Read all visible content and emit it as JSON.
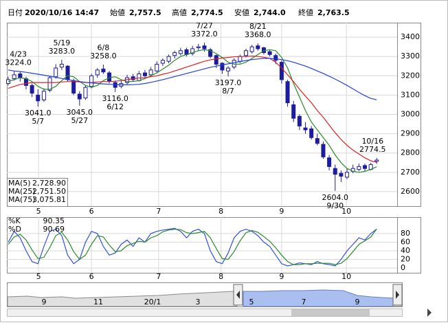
{
  "header": {
    "fields": [
      {
        "label": "日付",
        "value": "2020/10/16 14:47",
        "color": "#000000"
      },
      {
        "label": "始値",
        "value": "2,757.5",
        "color": "#000000"
      },
      {
        "label": "高値",
        "value": "2,774.5",
        "color": "#e00000"
      },
      {
        "label": "安値",
        "value": "2,744.0",
        "color": "#008000"
      },
      {
        "label": "終値",
        "value": "2,763.5",
        "color": "#000000"
      }
    ]
  },
  "chart_data": {
    "type": "candlestick",
    "ylim": [
      2525,
      3475
    ],
    "yticks": [
      2600,
      2700,
      2800,
      2900,
      3000,
      3100,
      3200,
      3300,
      3400
    ],
    "grid": true,
    "xticks": [
      {
        "value": 5.1,
        "label": "5"
      },
      {
        "value": 14,
        "label": "6"
      },
      {
        "value": 25.3,
        "label": "7"
      },
      {
        "value": 35.8,
        "label": "8"
      },
      {
        "value": 46,
        "label": "9"
      },
      {
        "value": 56.9,
        "label": "10"
      }
    ],
    "up_color": "#ffffff",
    "down_color": "#1c1c9c",
    "edge_color": "#1c1c9c",
    "open": [
      3160,
      3185,
      3210,
      3185,
      3150,
      3100,
      3075,
      3125,
      3195,
      3245,
      3250,
      3175,
      3105,
      3085,
      3145,
      3205,
      3235,
      3215,
      3165,
      3145,
      3165,
      3195,
      3175,
      3215,
      3205,
      3225,
      3265,
      3275,
      3305,
      3315,
      3335,
      3315,
      3345,
      3355,
      3335,
      3305,
      3265,
      3225,
      3245,
      3275,
      3305,
      3325,
      3355,
      3345,
      3325,
      3305,
      3270,
      3170,
      3050,
      2990,
      2930,
      2925,
      2875,
      2845,
      2775,
      2720,
      2695,
      2675,
      2705,
      2715,
      2735,
      2715,
      2757.5
    ],
    "high": [
      3195,
      3224,
      3220,
      3195,
      3160,
      3130,
      3135,
      3200,
      3260,
      3283,
      3255,
      3185,
      3120,
      3150,
      3210,
      3240,
      3258,
      3225,
      3175,
      3175,
      3205,
      3210,
      3225,
      3230,
      3245,
      3275,
      3290,
      3310,
      3330,
      3345,
      3345,
      3355,
      3365,
      3372,
      3345,
      3310,
      3270,
      3250,
      3290,
      3310,
      3340,
      3360,
      3368,
      3350,
      3335,
      3315,
      3280,
      3180,
      3070,
      3000,
      2960,
      2940,
      2900,
      2860,
      2790,
      2740,
      2710,
      2720,
      2740,
      2745,
      2745,
      2750,
      2774.5
    ],
    "low": [
      3150,
      3175,
      3170,
      3130,
      3090,
      3041,
      3065,
      3115,
      3185,
      3230,
      3170,
      3100,
      3045,
      3075,
      3135,
      3190,
      3210,
      3160,
      3116,
      3135,
      3155,
      3170,
      3170,
      3190,
      3195,
      3215,
      3250,
      3265,
      3290,
      3305,
      3300,
      3305,
      3330,
      3325,
      3290,
      3240,
      3210,
      3197,
      3235,
      3265,
      3295,
      3315,
      3330,
      3310,
      3300,
      3260,
      3160,
      3040,
      2960,
      2920,
      2900,
      2870,
      2840,
      2770,
      2710,
      2604,
      2650,
      2665,
      2695,
      2705,
      2705,
      2710,
      2744
    ],
    "close": [
      3180,
      3205,
      3190,
      3150,
      3110,
      3070,
      3120,
      3190,
      3240,
      3260,
      3180,
      3110,
      3080,
      3140,
      3200,
      3230,
      3220,
      3170,
      3140,
      3160,
      3190,
      3180,
      3210,
      3200,
      3230,
      3260,
      3280,
      3300,
      3320,
      3330,
      3310,
      3340,
      3350,
      3340,
      3300,
      3260,
      3230,
      3240,
      3280,
      3300,
      3330,
      3350,
      3340,
      3320,
      3310,
      3280,
      3180,
      3060,
      2980,
      2940,
      2920,
      2880,
      2850,
      2780,
      2730,
      2690,
      2680,
      2700,
      2720,
      2730,
      2720,
      2740,
      2763.5
    ],
    "series": [
      {
        "name": "MA(5)",
        "value_label": "2,728.90",
        "color": "#2a8a2a",
        "values": [
          3170,
          3180,
          3190,
          3185,
          3170,
          3145,
          3130,
          3130,
          3145,
          3175,
          3200,
          3195,
          3170,
          3150,
          3140,
          3150,
          3175,
          3190,
          3195,
          3180,
          3170,
          3170,
          3175,
          3185,
          3200,
          3215,
          3235,
          3255,
          3280,
          3300,
          3310,
          3320,
          3330,
          3335,
          3330,
          3315,
          3295,
          3270,
          3260,
          3260,
          3270,
          3290,
          3310,
          3330,
          3335,
          3330,
          3295,
          3240,
          3160,
          3090,
          3020,
          2960,
          2920,
          2880,
          2840,
          2790,
          2750,
          2720,
          2705,
          2700,
          2705,
          2715,
          2728.9
        ]
      },
      {
        "name": "MA(25)",
        "value_label": "2,751.50",
        "color": "#e02020",
        "values": [
          3135,
          3145,
          3155,
          3160,
          3165,
          3165,
          3165,
          3165,
          3165,
          3168,
          3170,
          3170,
          3168,
          3165,
          3165,
          3168,
          3170,
          3170,
          3172,
          3175,
          3180,
          3185,
          3188,
          3190,
          3195,
          3200,
          3208,
          3215,
          3225,
          3235,
          3245,
          3255,
          3265,
          3275,
          3282,
          3288,
          3292,
          3295,
          3298,
          3300,
          3300,
          3302,
          3300,
          3296,
          3290,
          3270,
          3240,
          3205,
          3170,
          3130,
          3095,
          3060,
          3020,
          2985,
          2945,
          2905,
          2870,
          2840,
          2815,
          2795,
          2775,
          2760,
          2751.5
        ]
      },
      {
        "name": "MA(75)",
        "value_label": "3,075.81",
        "color": "#2040e0",
        "values": [
          3230,
          3225,
          3222,
          3218,
          3213,
          3208,
          3203,
          3198,
          3192,
          3186,
          3180,
          3175,
          3170,
          3166,
          3163,
          3160,
          3158,
          3156,
          3154,
          3153,
          3153,
          3154,
          3156,
          3160,
          3166,
          3173,
          3180,
          3188,
          3196,
          3204,
          3212,
          3220,
          3228,
          3236,
          3244,
          3250,
          3256,
          3262,
          3268,
          3274,
          3279,
          3284,
          3287,
          3290,
          3290,
          3288,
          3284,
          3278,
          3270,
          3260,
          3250,
          3238,
          3225,
          3212,
          3198,
          3183,
          3167,
          3150,
          3132,
          3114,
          3097,
          3083,
          3075.81
        ]
      }
    ],
    "annotations": [
      {
        "date": "4/23",
        "value": "3224.0"
      },
      {
        "date": "5/7",
        "value": "3041.0"
      },
      {
        "date": "5/19",
        "value": "3283.0"
      },
      {
        "date": "5/27",
        "value": "3045.0"
      },
      {
        "date": "6/8",
        "value": "3258.0"
      },
      {
        "date": "6/12",
        "value": "3116.0"
      },
      {
        "date": "7/27",
        "value": "3372.0"
      },
      {
        "date": "8/7",
        "value": "3197.0"
      },
      {
        "date": "8/21",
        "value": "3368.0"
      },
      {
        "date": "9/30",
        "value": "2604.0"
      },
      {
        "date": "10/16",
        "value": "2774.5"
      }
    ],
    "stochastic": {
      "ylim": [
        -11,
        118
      ],
      "yticks": [
        0,
        20,
        40,
        60,
        80
      ],
      "series": [
        {
          "name": "%K",
          "value_label": "90.35",
          "color": "#3050e0",
          "values": [
            60,
            85,
            70,
            40,
            15,
            10,
            50,
            85,
            90,
            75,
            30,
            10,
            20,
            60,
            85,
            80,
            50,
            30,
            35,
            55,
            65,
            50,
            70,
            60,
            80,
            85,
            88,
            90,
            92,
            85,
            70,
            85,
            90,
            80,
            40,
            15,
            10,
            35,
            70,
            85,
            90,
            85,
            75,
            60,
            50,
            30,
            10,
            5,
            8,
            12,
            10,
            8,
            15,
            10,
            8,
            5,
            20,
            40,
            55,
            70,
            65,
            80,
            90.35
          ]
        },
        {
          "name": "%D",
          "value_label": "90.69",
          "color": "#2a8a2a",
          "values": [
            55,
            72,
            78,
            65,
            42,
            22,
            25,
            48,
            75,
            83,
            65,
            38,
            20,
            30,
            55,
            75,
            72,
            53,
            38,
            40,
            52,
            57,
            62,
            60,
            70,
            75,
            84,
            88,
            90,
            89,
            82,
            80,
            82,
            85,
            70,
            45,
            22,
            20,
            38,
            63,
            82,
            87,
            83,
            73,
            62,
            47,
            30,
            15,
            8,
            8,
            10,
            10,
            11,
            11,
            11,
            8,
            11,
            22,
            38,
            55,
            63,
            72,
            90.69
          ]
        }
      ]
    }
  },
  "navigator": {
    "labels": [
      "9",
      "11",
      "20/1",
      "3",
      "5",
      "7",
      "9"
    ]
  }
}
